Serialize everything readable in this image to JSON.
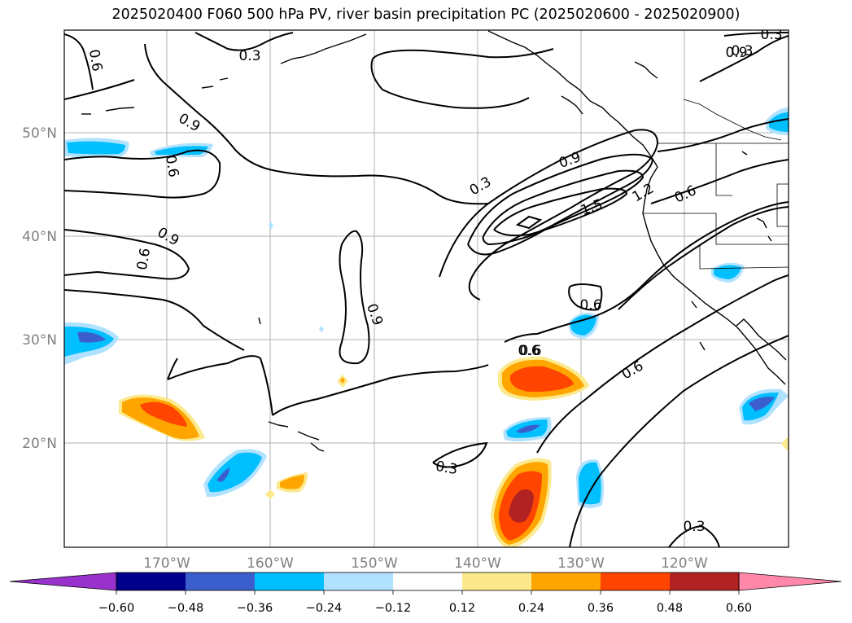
{
  "title": "2025020400 F060 500 hPa PV, river basin precipitation PC (2025020600 - 2025020900)",
  "map": {
    "lat_labels": [
      "50°N",
      "40°N",
      "30°N",
      "20°N"
    ],
    "lon_labels": [
      "170°W",
      "160°W",
      "150°W",
      "140°W",
      "130°W",
      "120°W"
    ],
    "contour_labels": [
      "0.3",
      "0.6",
      "0.9",
      "0.6",
      "0.9",
      "0.6",
      "0.9",
      "0.6",
      "0.3",
      "0.9",
      "1.5",
      "1.2",
      "0.6",
      "0.6",
      "0.6",
      "0.3",
      "0.3",
      "0.3",
      "0.3",
      "0.9",
      "0.6"
    ]
  },
  "colorbar": {
    "ticks": [
      "−0.60",
      "−0.48",
      "−0.36",
      "−0.24",
      "−0.12",
      "0.12",
      "0.24",
      "0.36",
      "0.48",
      "0.60"
    ],
    "colors": [
      "#9932cc",
      "#00008b",
      "#3a5fcd",
      "#00bfff",
      "#b0e2ff",
      "#ffffff",
      "#fce98c",
      "#ffa500",
      "#ff4500",
      "#b22222",
      "#ff88aa"
    ]
  },
  "colors": {
    "contour": "#000000",
    "grid": "#b0b0b0",
    "tick_label": "#808080"
  }
}
